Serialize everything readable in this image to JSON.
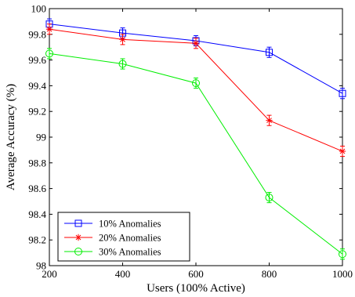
{
  "chart_data": {
    "type": "line",
    "title": "",
    "xlabel": "Users (100% Active)",
    "ylabel": "Average Accuracy (%)",
    "xlim": [
      200,
      1000
    ],
    "ylim": [
      98,
      100
    ],
    "x_ticks": [
      200,
      400,
      600,
      800,
      1000
    ],
    "y_ticks": [
      98,
      98.2,
      98.4,
      98.6,
      98.8,
      99,
      99.2,
      99.4,
      99.6,
      99.8,
      100
    ],
    "x_tick_labels": [
      "200",
      "400",
      "600",
      "800",
      "1000"
    ],
    "y_tick_labels": [
      "98",
      "98.2",
      "98.4",
      "98.6",
      "98.8",
      "99",
      "99.2",
      "99.4",
      "99.6",
      "99.8",
      "100"
    ],
    "x": [
      200,
      400,
      600,
      800,
      1000
    ],
    "grid": false,
    "legend_position": "bottom-left",
    "series": [
      {
        "name": "10% Anomalies",
        "color": "#0000ff",
        "marker": "square",
        "values": [
          99.88,
          99.81,
          99.75,
          99.66,
          99.34
        ],
        "errors": [
          0.04,
          0.04,
          0.04,
          0.04,
          0.04
        ]
      },
      {
        "name": "20% Anomalies",
        "color": "#ff0000",
        "marker": "asterisk",
        "values": [
          99.84,
          99.76,
          99.73,
          99.13,
          98.89
        ],
        "errors": [
          0.04,
          0.04,
          0.04,
          0.04,
          0.04
        ]
      },
      {
        "name": "30% Anomalies",
        "color": "#00ee00",
        "marker": "circle",
        "values": [
          99.65,
          99.57,
          99.42,
          98.53,
          98.09
        ],
        "errors": [
          0.04,
          0.04,
          0.04,
          0.04,
          0.04
        ]
      }
    ]
  }
}
